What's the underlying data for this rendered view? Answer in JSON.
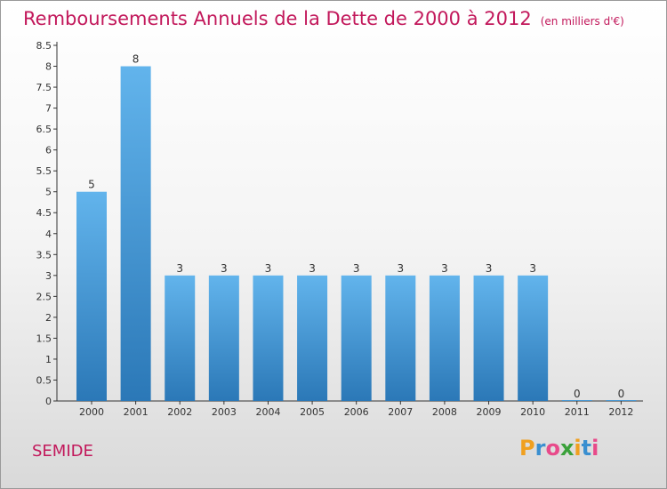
{
  "chart_data": {
    "type": "bar",
    "title": "Remboursements Annuels de la Dette de 2000 à 2012",
    "subtitle": "(en milliers d'€)",
    "categories": [
      "2000",
      "2001",
      "2002",
      "2003",
      "2004",
      "2005",
      "2006",
      "2007",
      "2008",
      "2009",
      "2010",
      "2011",
      "2012"
    ],
    "values": [
      5,
      8,
      3,
      3,
      3,
      3,
      3,
      3,
      3,
      3,
      3,
      0,
      0
    ],
    "y_ticks": [
      "0",
      "0.5",
      "1",
      "1.5",
      "2",
      "2.5",
      "3",
      "3.5",
      "4",
      "4.5",
      "5",
      "5.5",
      "6",
      "6.5",
      "7",
      "7.5",
      "8",
      "8.5"
    ],
    "ylim": [
      0,
      8.5
    ],
    "grid": false,
    "colors": {
      "bar_light": "#5aaee8",
      "bar_dark": "#2a78b8"
    }
  },
  "place": "SEMIDE",
  "brand": "Proxiti"
}
